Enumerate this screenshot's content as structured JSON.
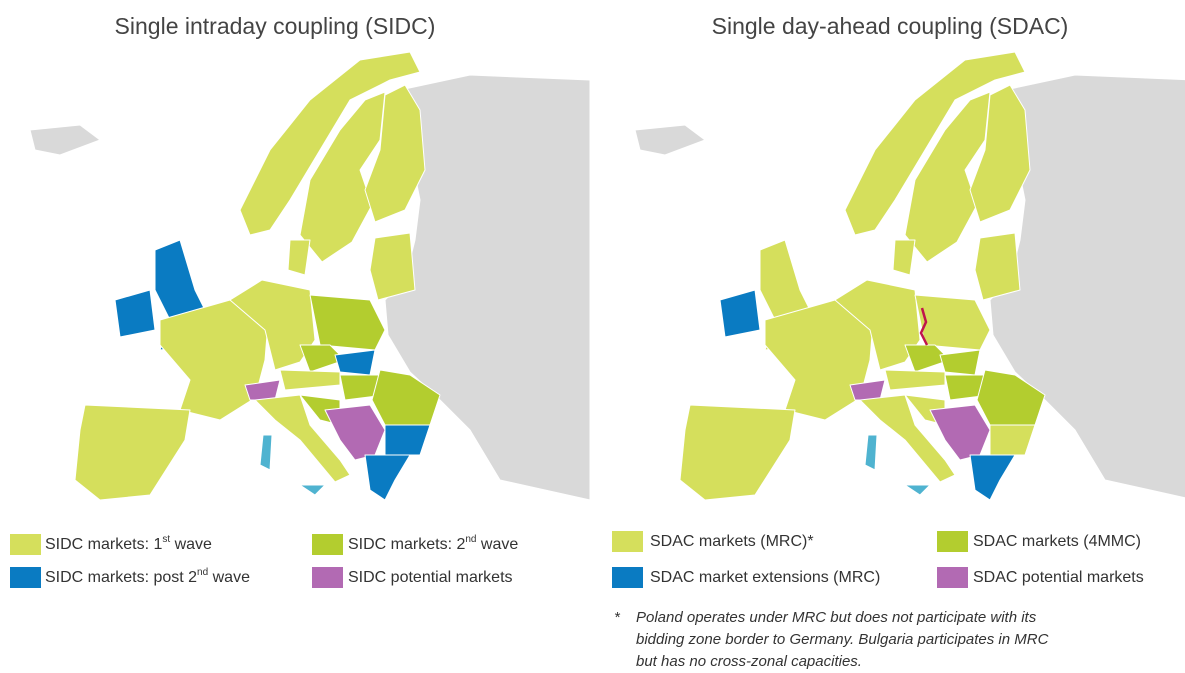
{
  "left": {
    "title": "Single intraday coupling (SIDC)",
    "legend": [
      {
        "main": "SIDC markets: 1",
        "sup": "st",
        "end": " wave",
        "color": "#d5df5c"
      },
      {
        "main": "SIDC markets: 2",
        "sup": "nd",
        "end": " wave",
        "color": "#b3cd2f"
      },
      {
        "main": "SIDC markets: post 2",
        "sup": "nd",
        "end": " wave",
        "color": "#0a7bc2"
      },
      {
        "main": "SIDC potential markets",
        "color": "#b26ab3"
      }
    ]
  },
  "right": {
    "title": "Single day-ahead coupling (SDAC)",
    "legend": [
      {
        "main": "SDAC markets (MRC)*",
        "color": "#d5df5c"
      },
      {
        "main": "SDAC markets (4MMC)",
        "color": "#b3cd2f"
      },
      {
        "main": "SDAC market extensions (MRC)",
        "color": "#0a7bc2"
      },
      {
        "main": "SDAC potential markets",
        "color": "#b26ab3"
      }
    ],
    "footnote": {
      "marker": "*",
      "lines": [
        "Poland operates under MRC but does not participate with its",
        "bidding zone border to Germany. Bulgaria participates in MRC",
        "but has no cross-zonal capacities."
      ]
    }
  }
}
